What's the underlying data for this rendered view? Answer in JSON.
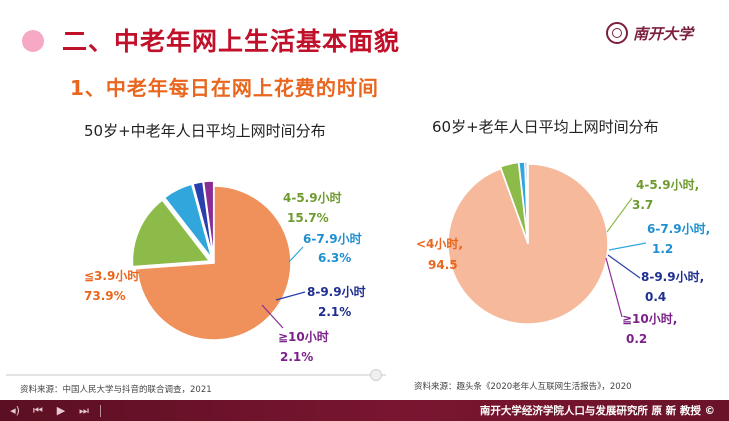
{
  "slide": {
    "main_title": "二、中老年网上生活基本面貌",
    "sub_title": "1、中老年每日在网上花费的时间",
    "logo_text": "南开大学",
    "footer": "南开大学经济学院人口与发展研究所 原 新 教授 ©",
    "accent_color": "#c0102a",
    "subtitle_color": "#e8661e"
  },
  "chart_data": [
    {
      "type": "pie",
      "title": "50岁+中老年人日平均上网时间分布",
      "source": "资料来源：中国人民大学与抖音的联合调查，2021",
      "slices": [
        {
          "label": "≦3.9小时",
          "value": 73.9,
          "value_text": "73.9%",
          "color": "#f0915c",
          "label_color": "#e8661e"
        },
        {
          "label": "4-5.9小时",
          "value": 15.7,
          "value_text": "15.7%",
          "color": "#8dbb4a",
          "label_color": "#6f9a2e"
        },
        {
          "label": "6-7.9小时",
          "value": 6.3,
          "value_text": "6.3%",
          "color": "#31a6dd",
          "label_color": "#1e8fd0"
        },
        {
          "label": "8-9.9小时",
          "value": 2.1,
          "value_text": "2.1%",
          "color": "#2a3fae",
          "label_color": "#1f2f8f"
        },
        {
          "label": "≧10小时",
          "value": 2.1,
          "value_text": "2.1%",
          "color": "#8a2b96",
          "label_color": "#7a2288"
        }
      ]
    },
    {
      "type": "pie",
      "title": "60岁+老年人日平均上网时间分布",
      "source": "资料来源：趣头条《2020老年人互联网生活报告》，2020",
      "slices": [
        {
          "label": "<4小时,",
          "value": 94.5,
          "value_text": "94.5",
          "color": "#f6b99c",
          "label_color": "#e8661e"
        },
        {
          "label": "4-5.9小时,",
          "value": 3.7,
          "value_text": "3.7",
          "color": "#8dbb4a",
          "label_color": "#6f9a2e"
        },
        {
          "label": "6-7.9小时,",
          "value": 1.2,
          "value_text": "1.2",
          "color": "#31a6dd",
          "label_color": "#1e8fd0"
        },
        {
          "label": "8-9.9小时,",
          "value": 0.4,
          "value_text": "0.4",
          "color": "#2a3fae",
          "label_color": "#1f2f8f"
        },
        {
          "label": "≧10小时,",
          "value": 0.2,
          "value_text": "0.2",
          "color": "#8a2b96",
          "label_color": "#7a2288"
        }
      ]
    }
  ]
}
